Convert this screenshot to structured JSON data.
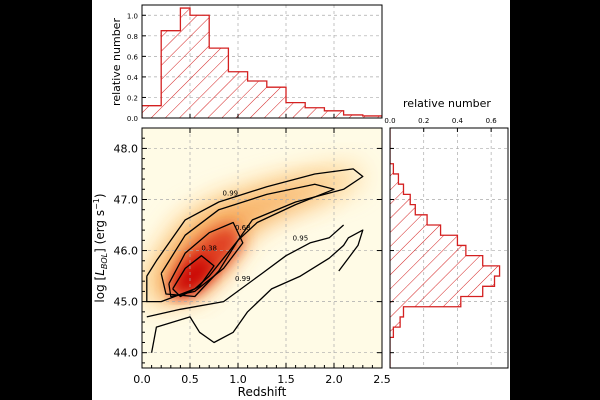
{
  "chart_data": [
    {
      "type": "heatmap",
      "panel": "main",
      "xlabel": "Redshift",
      "ylabel": "log [L_BOL] (erg s⁻¹)",
      "ylabel_parts": {
        "pre": "log [",
        "L": "L",
        "sub": "BOL",
        "post": "] (erg s",
        "sup": "−1",
        "end": ")"
      },
      "xlim": [
        0.0,
        2.5
      ],
      "ylim": [
        43.7,
        48.4
      ],
      "xticks": [
        0.0,
        0.5,
        1.0,
        1.5,
        2.0,
        2.5
      ],
      "xtick_labels": [
        "0.0",
        "0.5",
        "1.0",
        "1.5",
        "2.0",
        "2.5"
      ],
      "yticks": [
        44.0,
        45.0,
        46.0,
        47.0,
        48.0
      ],
      "ytick_labels": [
        "44.0",
        "45.0",
        "46.0",
        "47.0",
        "48.0"
      ],
      "grid": true,
      "density_colors": {
        "low": "#fff8d0",
        "mid": "#f5a050",
        "high": "#c80000"
      },
      "contours": [
        {
          "level": "0.99",
          "points": [
            [
              0.05,
              45.5
            ],
            [
              0.15,
              45.8
            ],
            [
              0.45,
              46.6
            ],
            [
              0.8,
              46.95
            ],
            [
              1.3,
              47.25
            ],
            [
              1.8,
              47.5
            ],
            [
              2.2,
              47.6
            ],
            [
              2.3,
              47.45
            ],
            [
              2.1,
              47.2
            ],
            [
              1.6,
              46.95
            ],
            [
              1.15,
              46.6
            ],
            [
              1.0,
              46.2
            ],
            [
              0.85,
              45.85
            ],
            [
              0.7,
              45.5
            ],
            [
              0.55,
              45.25
            ],
            [
              0.2,
              45.0
            ],
            [
              0.05,
              45.0
            ],
            [
              0.05,
              45.5
            ]
          ]
        },
        {
          "level": "0.95",
          "points": [
            [
              0.2,
              45.55
            ],
            [
              0.45,
              46.3
            ],
            [
              0.8,
              46.8
            ],
            [
              1.3,
              47.1
            ],
            [
              1.8,
              47.3
            ],
            [
              2.0,
              47.2
            ],
            [
              1.6,
              46.9
            ],
            [
              1.2,
              46.55
            ],
            [
              1.0,
              46.2
            ],
            [
              0.8,
              45.6
            ],
            [
              0.55,
              45.1
            ],
            [
              0.25,
              45.15
            ],
            [
              0.2,
              45.55
            ]
          ]
        },
        {
          "level": "0.68",
          "points": [
            [
              0.28,
              45.35
            ],
            [
              0.45,
              45.95
            ],
            [
              0.7,
              46.35
            ],
            [
              0.95,
              46.55
            ],
            [
              1.05,
              46.15
            ],
            [
              0.85,
              45.65
            ],
            [
              0.55,
              45.2
            ],
            [
              0.3,
              45.1
            ],
            [
              0.28,
              45.35
            ]
          ]
        },
        {
          "level": "0.38",
          "points": [
            [
              0.32,
              45.25
            ],
            [
              0.45,
              45.65
            ],
            [
              0.62,
              45.9
            ],
            [
              0.75,
              45.7
            ],
            [
              0.6,
              45.3
            ],
            [
              0.4,
              45.1
            ],
            [
              0.32,
              45.25
            ]
          ]
        }
      ],
      "lower_lines": [
        {
          "points": [
            [
              0.1,
              44.0
            ],
            [
              0.15,
              44.5
            ],
            [
              0.5,
              44.7
            ],
            [
              0.6,
              44.4
            ],
            [
              0.75,
              44.2
            ],
            [
              0.95,
              44.4
            ],
            [
              1.1,
              44.8
            ],
            [
              1.35,
              45.25
            ],
            [
              1.65,
              45.5
            ],
            [
              1.95,
              45.85
            ],
            [
              2.1,
              46.1
            ],
            [
              2.15,
              46.25
            ],
            [
              2.3,
              46.4
            ],
            [
              2.25,
              46.1
            ],
            [
              2.05,
              45.6
            ]
          ]
        },
        {
          "points": [
            [
              0.05,
              44.7
            ],
            [
              0.4,
              44.85
            ],
            [
              0.85,
              45.0
            ],
            [
              1.25,
              45.55
            ],
            [
              1.5,
              45.9
            ],
            [
              1.75,
              46.15
            ],
            [
              1.95,
              46.25
            ],
            [
              2.1,
              46.5
            ]
          ]
        }
      ],
      "contour_label_positions": [
        {
          "text": "0.99",
          "x": 0.92,
          "y": 47.08
        },
        {
          "text": "0.68",
          "x": 1.05,
          "y": 46.4
        },
        {
          "text": "0.95",
          "x": 1.65,
          "y": 46.2
        },
        {
          "text": "0.38",
          "x": 0.7,
          "y": 46.0
        },
        {
          "text": "0.99",
          "x": 1.05,
          "y": 45.4
        }
      ]
    },
    {
      "type": "bar",
      "panel": "top-histogram",
      "ylabel": "relative number",
      "style": "step, red outline, hatched",
      "bin_edges": [
        0.0,
        0.2,
        0.4,
        0.5,
        0.7,
        0.9,
        1.1,
        1.3,
        1.5,
        1.7,
        1.9,
        2.1,
        2.3,
        2.5
      ],
      "values": [
        0.12,
        0.85,
        1.07,
        1.0,
        0.68,
        0.45,
        0.36,
        0.3,
        0.15,
        0.1,
        0.07,
        0.03,
        0.02
      ],
      "xlim": [
        0.0,
        2.5
      ],
      "ylim": [
        0.0,
        1.1
      ],
      "yticks": [
        0.0,
        0.2,
        0.4,
        0.6,
        0.8,
        1.0
      ],
      "ytick_labels": [
        "0.0",
        "0.2",
        "0.4",
        "0.6",
        "0.8",
        "1.0"
      ],
      "grid": true
    },
    {
      "type": "bar",
      "panel": "right-histogram",
      "xlabel": "relative number",
      "style": "horizontal step, red outline, hatched",
      "orientation": "horizontal",
      "bin_edges": [
        43.7,
        44.3,
        44.5,
        44.7,
        44.9,
        45.1,
        45.3,
        45.5,
        45.7,
        45.9,
        46.1,
        46.3,
        46.5,
        46.7,
        46.9,
        47.1,
        47.3,
        47.5,
        47.7,
        48.4
      ],
      "values": [
        0.0,
        0.02,
        0.06,
        0.08,
        0.42,
        0.55,
        0.62,
        0.65,
        0.55,
        0.45,
        0.4,
        0.3,
        0.22,
        0.15,
        0.12,
        0.08,
        0.05,
        0.02,
        0.0
      ],
      "xlim": [
        0.0,
        0.7
      ],
      "ylim": [
        43.7,
        48.4
      ],
      "xticks": [
        0.0,
        0.2,
        0.4,
        0.6
      ],
      "xtick_labels": [
        "0.0",
        "0.2",
        "0.4",
        "0.6"
      ],
      "grid": true
    }
  ]
}
